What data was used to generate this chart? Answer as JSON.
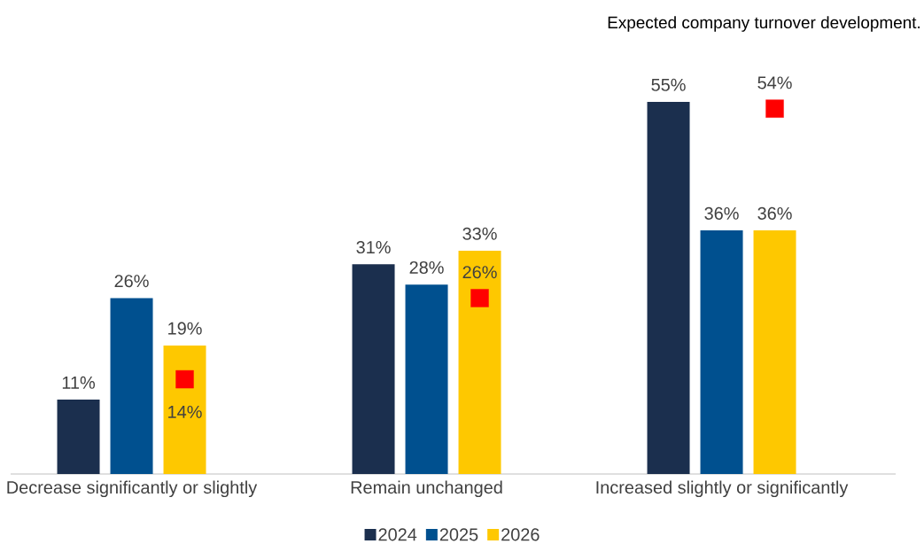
{
  "chart_data": {
    "type": "bar",
    "title": "Expected company turnover development.",
    "categories": [
      "Decrease significantly or slightly",
      "Remain unchanged",
      "Increased slightly or significantly"
    ],
    "series": [
      {
        "name": "2024",
        "color": "#1b2f4e",
        "values": [
          11,
          31,
          55
        ],
        "value_labels": [
          "11%",
          "31%",
          "55%"
        ]
      },
      {
        "name": "2025",
        "color": "#00508f",
        "values": [
          26,
          28,
          36
        ],
        "value_labels": [
          "26%",
          "28%",
          "36%"
        ]
      },
      {
        "name": "2026",
        "color": "#fec800",
        "values": [
          19,
          33,
          36
        ],
        "value_labels": [
          "19%",
          "33%",
          "36%"
        ]
      },
      {
        "type": "scatter",
        "color": "#ff0000",
        "marker": "square",
        "x": [
          "Decrease significantly or slightly",
          "Remain unchanged",
          "Increased slightly or significantly"
        ],
        "values": [
          14,
          26,
          54
        ],
        "value_labels": [
          "14%",
          "26%",
          "54%"
        ]
      }
    ],
    "legend": "bottom",
    "grid": false
  }
}
